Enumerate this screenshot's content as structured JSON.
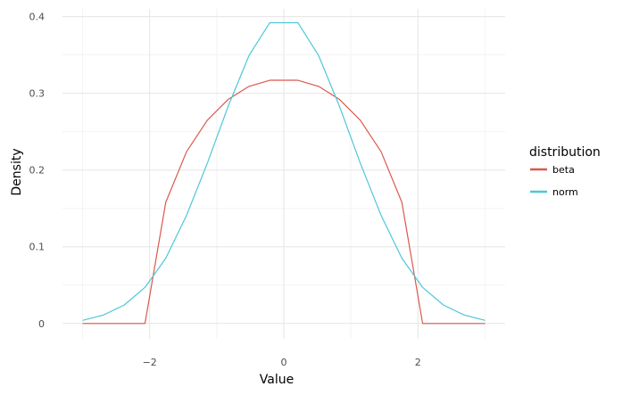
{
  "chart_data": {
    "type": "line",
    "title": "",
    "xlabel": "Value",
    "ylabel": "Density",
    "xlim": [
      -3.3,
      3.3
    ],
    "ylim": [
      -0.02,
      0.41
    ],
    "x_ticks": [
      -2,
      0,
      2
    ],
    "x_tick_labels": [
      "−2",
      "0",
      "2"
    ],
    "y_ticks": [
      0,
      0.1,
      0.2,
      0.3,
      0.4
    ],
    "y_tick_labels": [
      "0",
      "0.1",
      "0.2",
      "0.3",
      "0.4"
    ],
    "grid": true,
    "legend": {
      "title": "distribution",
      "position": "right"
    },
    "x": [
      -3.0,
      -2.69,
      -2.38,
      -2.07,
      -1.76,
      -1.45,
      -1.14,
      -0.83,
      -0.52,
      -0.21,
      0.21,
      0.52,
      0.83,
      1.14,
      1.45,
      1.76,
      2.07,
      2.38,
      2.69,
      3.0
    ],
    "series": [
      {
        "name": "beta",
        "color": "#d9594c",
        "values": [
          0,
          0,
          0,
          0,
          0.158,
          0.224,
          0.265,
          0.292,
          0.309,
          0.317,
          0.317,
          0.309,
          0.292,
          0.265,
          0.224,
          0.158,
          0,
          0,
          0,
          0
        ]
      },
      {
        "name": "norm",
        "color": "#4ec7d9",
        "values": [
          0.004,
          0.011,
          0.024,
          0.047,
          0.085,
          0.141,
          0.209,
          0.283,
          0.349,
          0.392,
          0.392,
          0.349,
          0.283,
          0.209,
          0.141,
          0.085,
          0.047,
          0.024,
          0.011,
          0.004
        ]
      }
    ]
  }
}
